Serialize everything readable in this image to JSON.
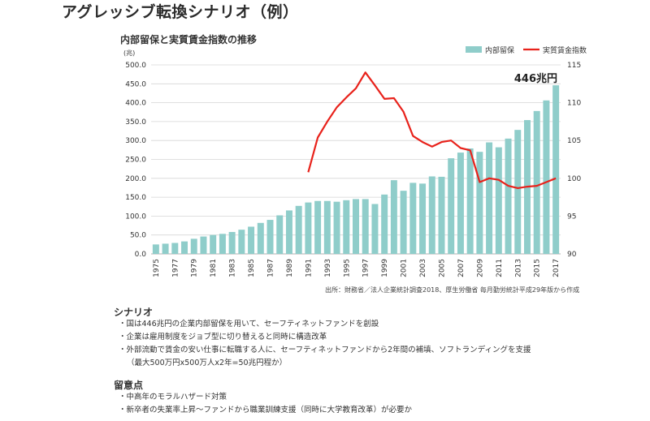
{
  "page_title": "アグレッシブ転換シナリオ（例）",
  "chart_data": {
    "type": "bar+line",
    "title": "内部留保と実質賃金指数の推移",
    "y_left_unit": "(兆)",
    "y_left_range": [
      0,
      500
    ],
    "y_left_ticks": [
      "0.0",
      "50.0",
      "100.0",
      "150.0",
      "200.0",
      "250.0",
      "300.0",
      "350.0",
      "400.0",
      "450.0",
      "500.0"
    ],
    "y_right_range": [
      90,
      115
    ],
    "y_right_ticks": [
      "90",
      "95",
      "100",
      "105",
      "110",
      "115"
    ],
    "x_tick_labels": [
      "1975",
      "1977",
      "1979",
      "1981",
      "1983",
      "1985",
      "1987",
      "1989",
      "1991",
      "1993",
      "1995",
      "1997",
      "1999",
      "2001",
      "2003",
      "2005",
      "2007",
      "2009",
      "2011",
      "2013",
      "2015",
      "2017"
    ],
    "years": [
      1975,
      1976,
      1977,
      1978,
      1979,
      1980,
      1981,
      1982,
      1983,
      1984,
      1985,
      1986,
      1987,
      1988,
      1989,
      1990,
      1991,
      1992,
      1993,
      1994,
      1995,
      1996,
      1997,
      1998,
      1999,
      2000,
      2001,
      2002,
      2003,
      2004,
      2005,
      2006,
      2007,
      2008,
      2009,
      2010,
      2011,
      2012,
      2013,
      2014,
      2015,
      2016,
      2017
    ],
    "legend_position": "top-right",
    "series": [
      {
        "name": "内部留保",
        "axis": "left",
        "kind": "bar",
        "color": "#8fcdca",
        "values": [
          25,
          27,
          29,
          33,
          40,
          46,
          50,
          53,
          58,
          64,
          72,
          82,
          90,
          102,
          115,
          127,
          136,
          140,
          140,
          138,
          142,
          145,
          145,
          132,
          157,
          195,
          167,
          188,
          186,
          205,
          204,
          253,
          268,
          279,
          270,
          295,
          282,
          305,
          328,
          354,
          378,
          406,
          446
        ]
      },
      {
        "name": "実質賃金指数",
        "axis": "right",
        "kind": "line",
        "color": "#e8221b",
        "start_year": 1991,
        "values": [
          100.8,
          105.4,
          107.5,
          109.4,
          110.7,
          111.9,
          114.0,
          112.3,
          110.5,
          110.6,
          108.8,
          105.6,
          104.8,
          104.2,
          104.8,
          105.0,
          104.0,
          103.7,
          99.5,
          100.0,
          99.8,
          99.0,
          98.7,
          98.9,
          99.0,
          99.5,
          100.0
        ]
      }
    ],
    "annotation": "446兆円"
  },
  "source": "出所：財務省／法人企業統計調査2018、厚生労働省 毎月勤労統計平成29年版から作成",
  "scenario": {
    "heading": "シナリオ",
    "items": [
      "国は446兆円の企業内部留保を用いて、セーフティネットファンドを創設",
      "企業は雇用制度をジョブ型に切り替えると同時に構造改革",
      "外部流動で賃金の安い仕事に転職する人に、セーフティネットファンドから2年間の補填、ソフトランディングを支援"
    ],
    "continuation": "（最大500万円x500万人x2年=50兆円程か）"
  },
  "notes": {
    "heading": "留意点",
    "items": [
      "中高年のモラルハザード対策",
      "新卒者の失業率上昇〜ファンドから職業訓練支援（同時に大学教育改革）が必要か"
    ]
  }
}
